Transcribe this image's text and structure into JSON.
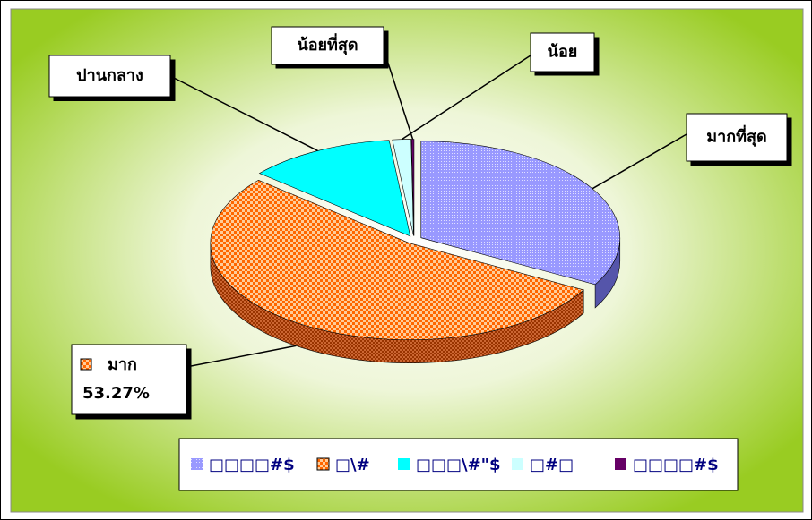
{
  "chart_data": {
    "type": "pie3d",
    "categories": [
      "มากที่สุด",
      "มาก",
      "ปานกลาง",
      "น้อย",
      "น้อยที่สุด"
    ],
    "values": [
      33.03,
      53.27,
      12.0,
      1.5,
      0.2
    ],
    "value_labels": [
      null,
      "53.27%",
      null,
      null,
      null
    ],
    "colors": [
      "#9999ff",
      "#ff6600",
      "#00ffff",
      "#ccffff",
      "#660066"
    ],
    "legend": [
      "□□□□#$",
      "□\\#",
      "□□□\\#\"$",
      "□#□",
      "□□□□#$"
    ],
    "legend_position": "bottom"
  }
}
